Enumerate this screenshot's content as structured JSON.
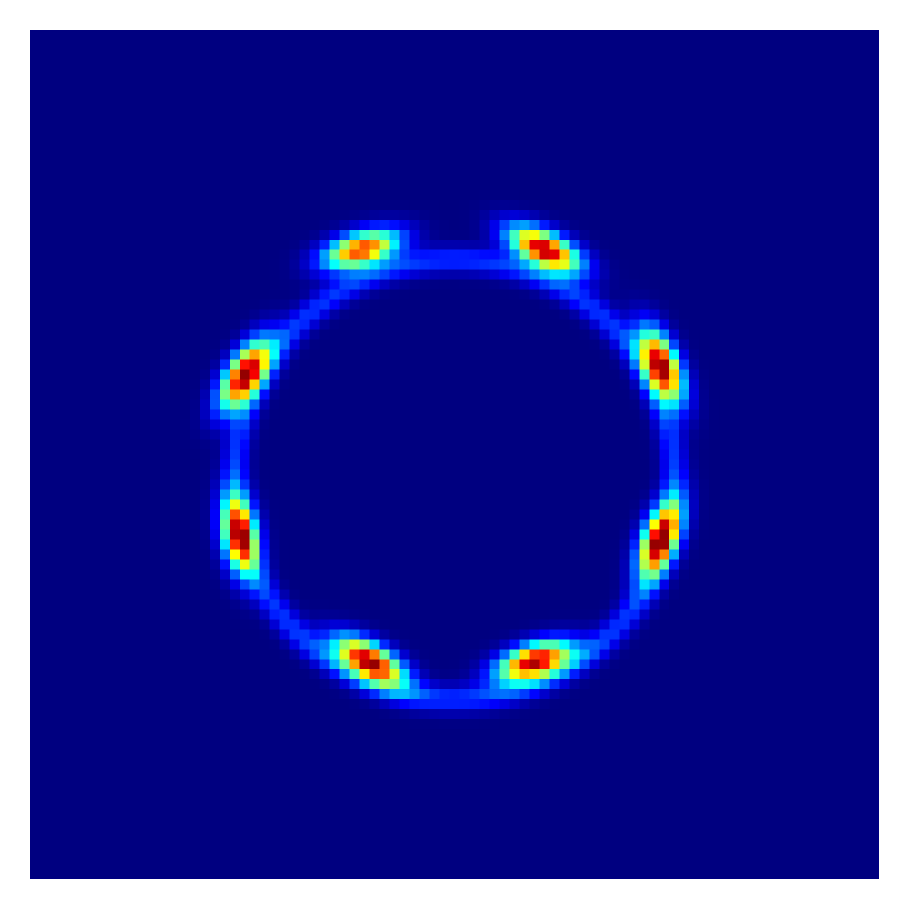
{
  "chart_data": {
    "type": "heatmap",
    "title": "",
    "xlabel": "",
    "ylabel": "",
    "colormap": "jet",
    "background_color": "#00007f",
    "grid": false,
    "legend": "none",
    "pixel_grid": [
      85,
      85
    ],
    "ring": {
      "center": [
        42.5,
        45.0
      ],
      "radius": 22.0,
      "ring_intensity": 0.18,
      "ring_width": 0.9
    },
    "spots": [
      {
        "name": "top-left",
        "x": 33.2,
        "y": 22.0,
        "peak": 0.86
      },
      {
        "name": "top-right",
        "x": 51.5,
        "y": 22.0,
        "peak": 1.0
      },
      {
        "name": "upper-right",
        "x": 63.2,
        "y": 33.6,
        "peak": 1.0
      },
      {
        "name": "lower-right",
        "x": 63.0,
        "y": 51.0,
        "peak": 0.95
      },
      {
        "name": "bottom-right",
        "x": 50.5,
        "y": 63.2,
        "peak": 0.98
      },
      {
        "name": "bottom-left",
        "x": 34.0,
        "y": 63.2,
        "peak": 1.0
      },
      {
        "name": "lower-left",
        "x": 21.0,
        "y": 50.6,
        "peak": 0.9
      },
      {
        "name": "upper-left",
        "x": 21.5,
        "y": 34.5,
        "peak": 1.0
      }
    ],
    "spot_shape": {
      "tangential_sigma": 2.6,
      "radial_sigma": 1.2,
      "skew": 0.35
    }
  }
}
